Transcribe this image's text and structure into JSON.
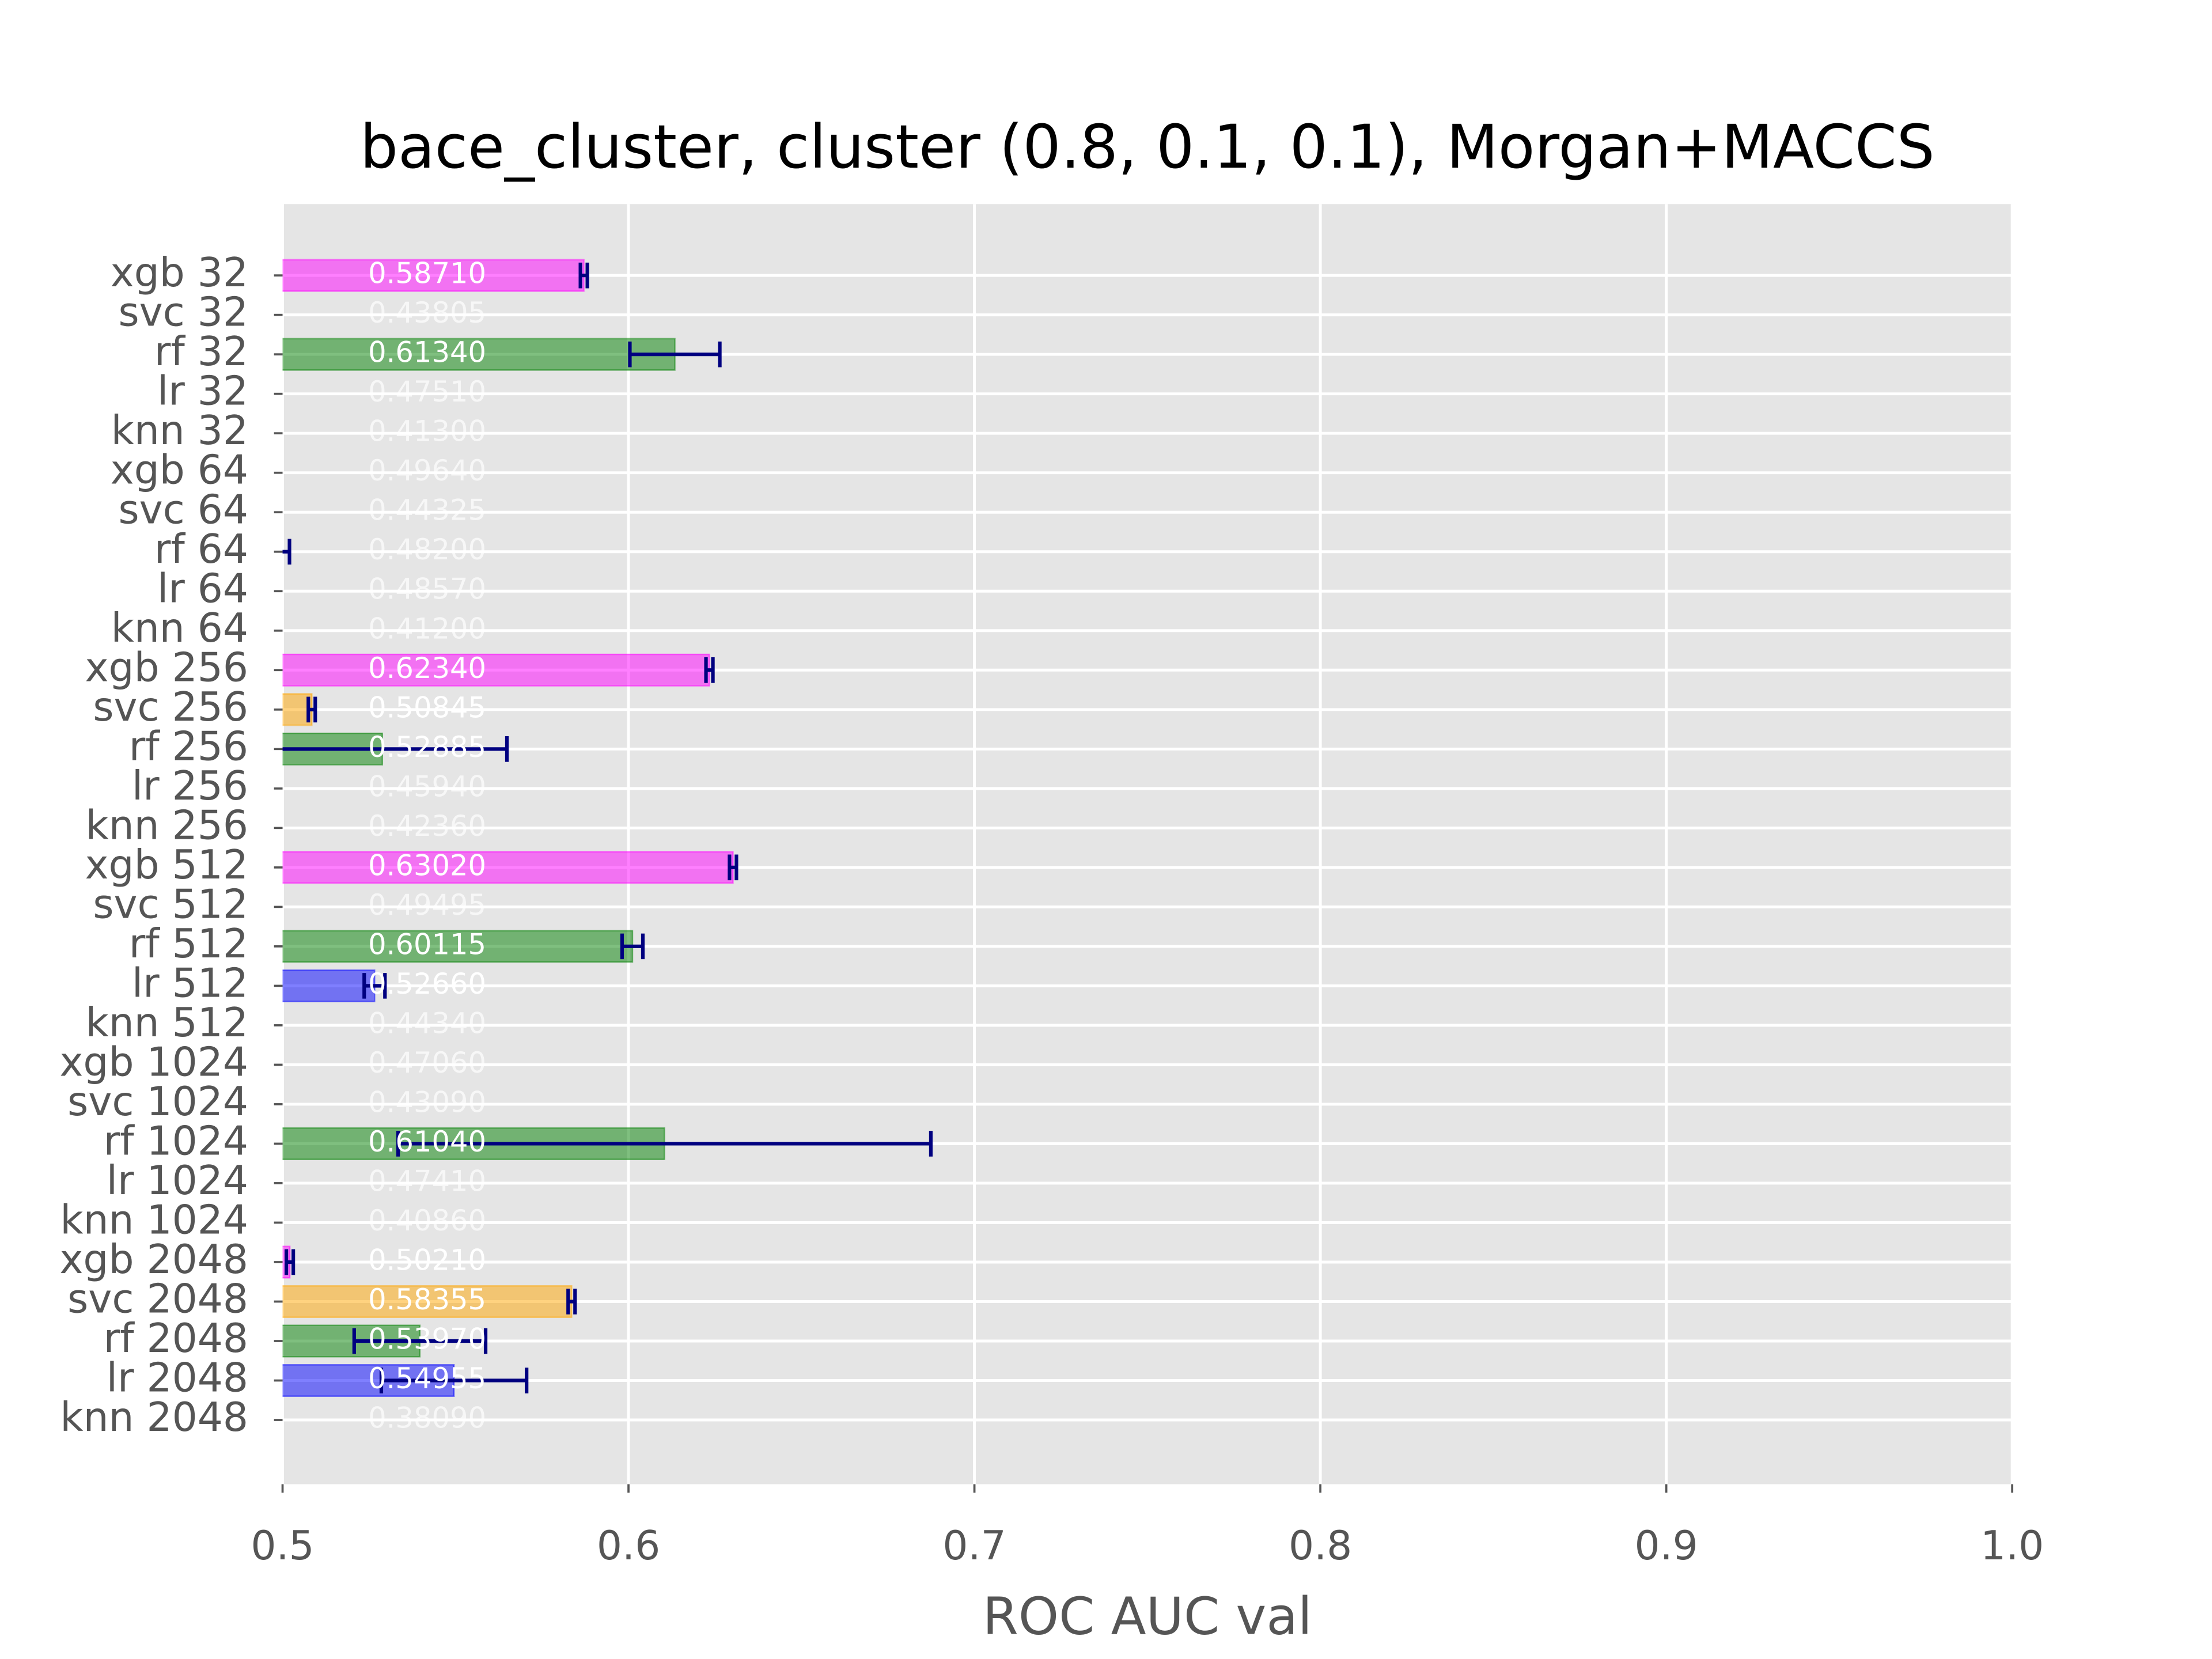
{
  "chart_data": {
    "type": "barh",
    "title": "bace_cluster, cluster (0.8, 0.1, 0.1), Morgan+MACCS",
    "x_label": "ROC AUC val",
    "categories": [
      "xgb 32",
      "svc 32",
      "rf 32",
      "lr 32",
      "knn 32",
      "xgb 64",
      "svc 64",
      "rf 64",
      "lr 64",
      "knn 64",
      "xgb 256",
      "svc 256",
      "rf 256",
      "lr 256",
      "knn 256",
      "xgb 512",
      "svc 512",
      "rf 512",
      "lr 512",
      "knn 512",
      "xgb 1024",
      "svc 1024",
      "rf 1024",
      "lr 1024",
      "knn 1024",
      "xgb 2048",
      "svc 2048",
      "rf 2048",
      "lr 2048",
      "knn 2048"
    ],
    "values": [
      0.5871,
      0.43805,
      0.6134,
      0.4751,
      0.413,
      0.4964,
      0.44325,
      0.482,
      0.4857,
      0.412,
      0.6234,
      0.50845,
      0.52885,
      0.4594,
      0.4236,
      0.6302,
      0.49495,
      0.60115,
      0.5266,
      0.4434,
      0.4706,
      0.4309,
      0.6104,
      0.4741,
      0.4086,
      0.5021,
      0.58355,
      0.5397,
      0.54955,
      0.3809
    ],
    "value_labels": [
      "0.58710",
      "0.43805",
      "0.61340",
      "0.47510",
      "0.41300",
      "0.49640",
      "0.44325",
      "0.48200",
      "0.48570",
      "0.41200",
      "0.62340",
      "0.50845",
      "0.52885",
      "0.45940",
      "0.42360",
      "0.63020",
      "0.49495",
      "0.60115",
      "0.52660",
      "0.44340",
      "0.47060",
      "0.43090",
      "0.61040",
      "0.47410",
      "0.40860",
      "0.50210",
      "0.58355",
      "0.53970",
      "0.54955",
      "0.38090"
    ],
    "errors": [
      0.001,
      0.001,
      0.013,
      0.001,
      0.001,
      0.001,
      0.001,
      0.02,
      0.001,
      0.001,
      0.001,
      0.001,
      0.036,
      0.001,
      0.001,
      0.001,
      0.001,
      0.003,
      0.003,
      0.001,
      0.001,
      0.001,
      0.077,
      0.001,
      0.001,
      0.001,
      0.001,
      0.019,
      0.021,
      0.001
    ],
    "colors": [
      "#ff00ff",
      "#ffa500",
      "#008000",
      "#0000ff",
      "#808080",
      "#ff00ff",
      "#ffa500",
      "#008000",
      "#0000ff",
      "#808080",
      "#ff00ff",
      "#ffa500",
      "#008000",
      "#0000ff",
      "#808080",
      "#ff00ff",
      "#ffa500",
      "#008000",
      "#0000ff",
      "#808080",
      "#ff00ff",
      "#ffa500",
      "#008000",
      "#0000ff",
      "#808080",
      "#ff00ff",
      "#ffa500",
      "#008000",
      "#0000ff",
      "#808080"
    ],
    "error_color": "#000080",
    "xlim": [
      0.5,
      1.0
    ],
    "xticks": [
      0.5,
      0.6,
      0.7,
      0.8,
      0.9,
      {
        "value": 1.0,
        "label": "1.0"
      }
    ],
    "grid": true
  }
}
